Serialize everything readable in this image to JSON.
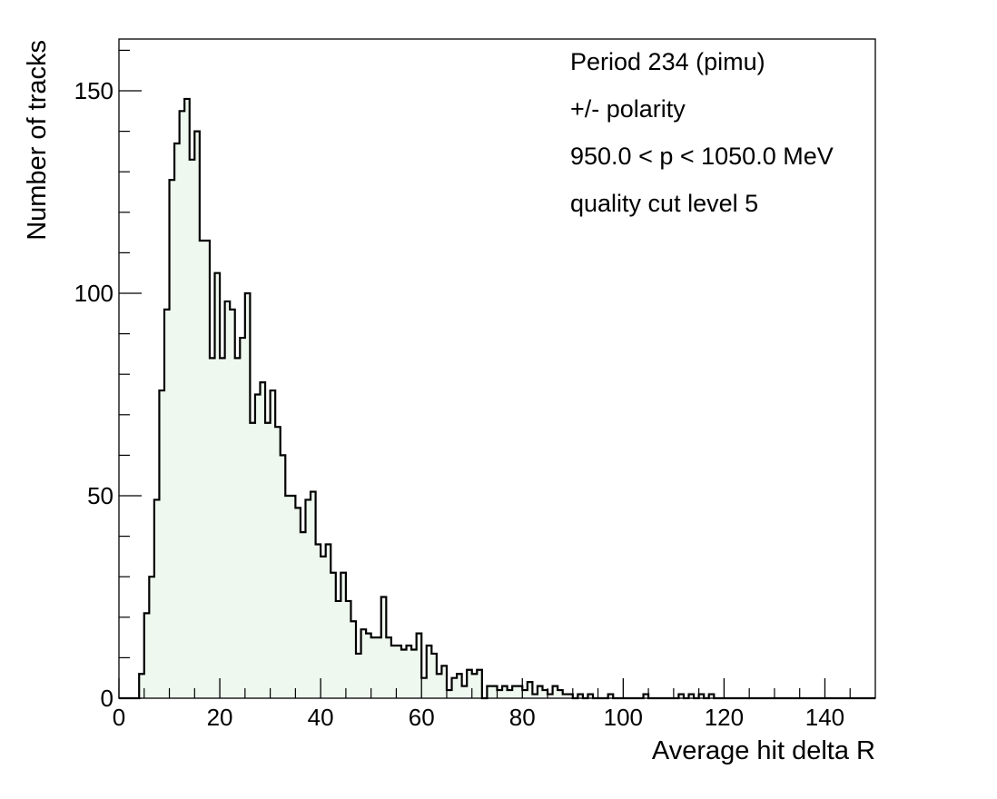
{
  "chart_data": {
    "type": "histogram",
    "title": "",
    "xlabel": "Average hit delta R",
    "ylabel": "Number of tracks",
    "xlim": [
      0,
      150
    ],
    "ylim": [
      0,
      150
    ],
    "bin_width": 1,
    "x_start": 0,
    "x_ticks": [
      0,
      20,
      40,
      60,
      80,
      100,
      120,
      140
    ],
    "x_tick_labels": [
      "0",
      "20",
      "40",
      "60",
      "80",
      "100",
      "120",
      "140"
    ],
    "y_ticks": [
      0,
      50,
      100,
      150
    ],
    "y_tick_labels": [
      "0",
      "50",
      "100",
      "150"
    ],
    "grid": false,
    "legend": false,
    "fill_color": "#eef8ee",
    "line_color": "#000000",
    "annotations": [
      "Period 234 (pimu)",
      "+/- polarity",
      "950.0 < p < 1050.0 MeV",
      "quality cut level 5"
    ],
    "values": [
      0,
      0,
      0,
      0,
      6,
      21,
      30,
      49,
      76,
      96,
      128,
      137,
      145,
      148,
      133,
      140,
      113,
      113,
      84,
      105,
      84,
      98,
      96,
      84,
      89,
      100,
      68,
      75,
      78,
      68,
      76,
      67,
      60,
      50,
      50,
      47,
      41,
      49,
      51,
      38,
      35,
      38,
      31,
      24,
      31,
      24,
      19,
      11,
      17,
      16,
      15,
      15,
      25,
      15,
      13,
      13,
      12,
      13,
      12,
      16,
      5,
      13,
      11,
      6,
      8,
      2,
      5,
      6,
      3,
      7,
      6,
      7,
      0,
      3,
      3,
      2,
      3,
      2,
      3,
      3,
      2,
      4,
      1,
      3,
      2,
      1,
      3,
      2,
      1,
      1,
      0,
      1,
      0,
      1,
      0,
      0,
      0,
      1,
      0,
      0,
      0,
      0,
      0,
      0,
      1,
      0,
      0,
      0,
      0,
      0,
      0,
      1,
      0,
      1,
      0,
      1,
      0,
      1,
      0,
      0,
      0,
      0,
      0,
      0,
      0,
      0,
      0,
      0,
      0,
      0,
      0,
      0,
      0,
      0,
      0,
      0,
      0,
      0,
      0,
      0,
      0,
      0,
      0,
      0,
      0,
      0,
      0,
      0,
      0,
      0
    ]
  }
}
